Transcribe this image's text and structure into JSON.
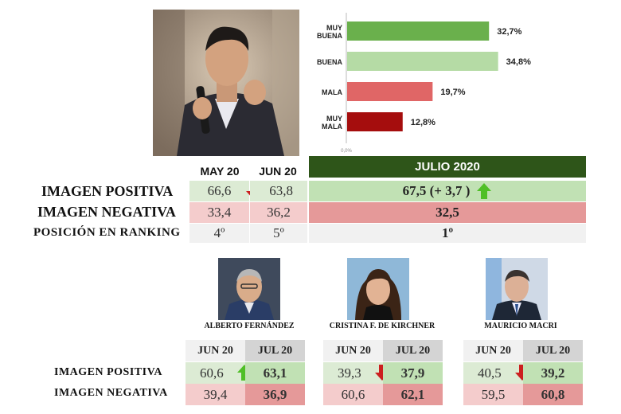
{
  "chart_data": {
    "type": "bar",
    "orientation": "horizontal",
    "categories": [
      "MUY BUENA",
      "BUENA",
      "MALA",
      "MUY MALA"
    ],
    "values": [
      32.7,
      34.8,
      19.7,
      12.8
    ],
    "value_labels": [
      "32,7%",
      "34,8%",
      "19,7%",
      "12,8%"
    ],
    "colors": [
      "#6ab04c",
      "#b5dba5",
      "#e06666",
      "#a50d0d"
    ],
    "axis_zero_label": "0,0%",
    "xlim": [
      0,
      40
    ]
  },
  "main_table": {
    "col_may": "MAY 20",
    "col_jun": "JUN 20",
    "col_jul": "JULIO 2020",
    "rows": [
      {
        "label": "IMAGEN POSITIVA",
        "may": "66,6",
        "jun": "63,8",
        "jul": "67,5 (+ 3,7 )",
        "trend_may_jun": "down",
        "trend_jul": "up"
      },
      {
        "label": "IMAGEN NEGATIVA",
        "may": "33,4",
        "jun": "36,2",
        "jul": "32,5"
      },
      {
        "label": "POSICIÓN EN RANKING",
        "may": "4º",
        "jun": "5º",
        "jul": "1º"
      }
    ]
  },
  "politicians": [
    {
      "name": "ALBERTO FERNÁNDEZ",
      "positiva_jun": "60,6",
      "positiva_jul": "63,1",
      "trend": "up",
      "negativa_jun": "39,4",
      "negativa_jul": "36,9"
    },
    {
      "name": "CRISTINA F. DE KIRCHNER",
      "positiva_jun": "39,3",
      "positiva_jul": "37,9",
      "trend": "down",
      "negativa_jun": "60,6",
      "negativa_jul": "62,1"
    },
    {
      "name": "MAURICIO MACRI",
      "positiva_jun": "40,5",
      "positiva_jul": "39,2",
      "trend": "down",
      "negativa_jun": "59,5",
      "negativa_jul": "60,8"
    }
  ],
  "compare": {
    "col_jun": "JUN 20",
    "col_jul": "JUL 20",
    "row_pos": "IMAGEN POSITIVA",
    "row_neg": "IMAGEN NEGATIVA"
  },
  "icons": {
    "up": "arrow-up-icon",
    "down": "arrow-down-icon"
  }
}
